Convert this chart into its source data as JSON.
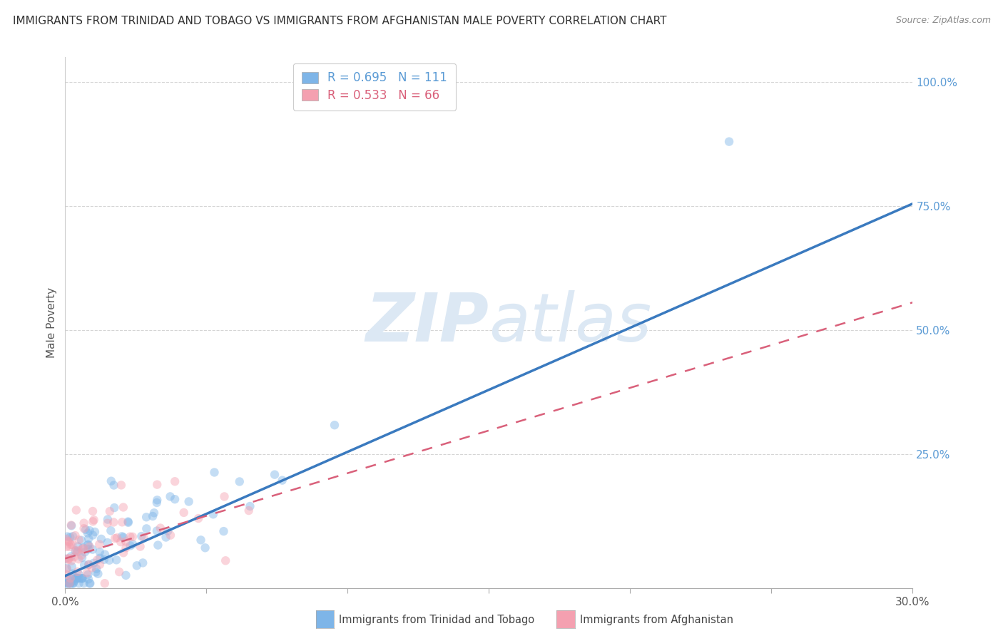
{
  "title": "IMMIGRANTS FROM TRINIDAD AND TOBAGO VS IMMIGRANTS FROM AFGHANISTAN MALE POVERTY CORRELATION CHART",
  "source": "Source: ZipAtlas.com",
  "xlabel": "",
  "ylabel": "Male Poverty",
  "xlim": [
    0.0,
    0.3
  ],
  "ylim": [
    -0.02,
    1.05
  ],
  "xticks": [
    0.0,
    0.05,
    0.1,
    0.15,
    0.2,
    0.25,
    0.3
  ],
  "xticklabels": [
    "0.0%",
    "",
    "",
    "",
    "",
    "",
    "30.0%"
  ],
  "yticks_right": [
    0.25,
    0.5,
    0.75,
    1.0
  ],
  "yticklabels_right": [
    "25.0%",
    "50.0%",
    "75.0%",
    "100.0%"
  ],
  "series1_color": "#7EB5E8",
  "series2_color": "#F4A0B0",
  "series1_label": "Immigrants from Trinidad and Tobago",
  "series2_label": "Immigrants from Afghanistan",
  "R1": 0.695,
  "N1": 111,
  "R2": 0.533,
  "N2": 66,
  "trendline1_color": "#3a7abf",
  "trendline2_color": "#d9607a",
  "watermark_zip": "ZIP",
  "watermark_atlas": "atlas",
  "background_color": "#ffffff",
  "grid_color": "#d5d5d5",
  "title_fontsize": 11,
  "legend_fontsize": 12,
  "marker_size": 80,
  "marker_alpha": 0.45,
  "trendline1_slope": 2.5,
  "trendline1_intercept": 0.005,
  "trendline2_slope": 1.72,
  "trendline2_intercept": 0.04,
  "right_label_color": "#5B9BD5"
}
